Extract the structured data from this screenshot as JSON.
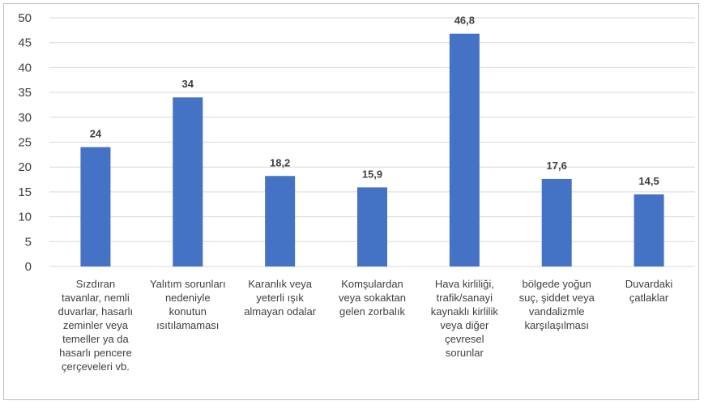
{
  "chart_data": {
    "type": "bar",
    "categories": [
      "Sızdıran tavanlar, nemli duvarlar, hasarlı zeminler veya temeller ya da hasarlı pencere çerçeveleri vb.",
      "Yalıtım sorunları nedeniyle konutun ısıtılamaması",
      "Karanlık veya yeterli ışık almayan odalar",
      "Komşulardan veya sokaktan gelen zorbalık",
      "Hava kirliliği, trafik/sanayi kaynaklı kirlilik veya diğer çevresel sorunlar",
      "bölgede yoğun suç, şiddet veya vandalizmle karşılaşılması",
      "Duvardaki çatlaklar"
    ],
    "category_lines": [
      [
        "Sızdıran",
        "tavanlar, nemli",
        "duvarlar, hasarlı",
        "zeminler veya",
        "temeller ya da",
        "hasarlı pencere",
        "çerçeveleri vb."
      ],
      [
        "Yalıtım sorunları",
        "nedeniyle",
        "konutun",
        "ısıtılamaması"
      ],
      [
        "Karanlık veya",
        "yeterli ışık",
        "almayan odalar"
      ],
      [
        "Komşulardan",
        "veya sokaktan",
        "gelen zorbalık"
      ],
      [
        "Hava kirliliği,",
        "trafik/sanayi",
        "kaynaklı kirlilik",
        "veya diğer",
        "çevresel",
        "sorunlar"
      ],
      [
        "bölgede yoğun",
        "suç, şiddet veya",
        "vandalizmle",
        "karşılaşılması"
      ],
      [
        "Duvardaki",
        "çatlaklar"
      ]
    ],
    "values": [
      24,
      34,
      18.2,
      15.9,
      46.8,
      17.6,
      14.5
    ],
    "value_labels": [
      "24",
      "34",
      "18,2",
      "15,9",
      "46,8",
      "17,6",
      "14,5"
    ],
    "yticks": [
      "0",
      "5",
      "10",
      "15",
      "20",
      "25",
      "30",
      "35",
      "40",
      "45",
      "50"
    ],
    "ylim": [
      0,
      50
    ],
    "grid": true,
    "legend": "none",
    "bar_color": "#4472c4",
    "grid_color": "#d9d9d9"
  }
}
